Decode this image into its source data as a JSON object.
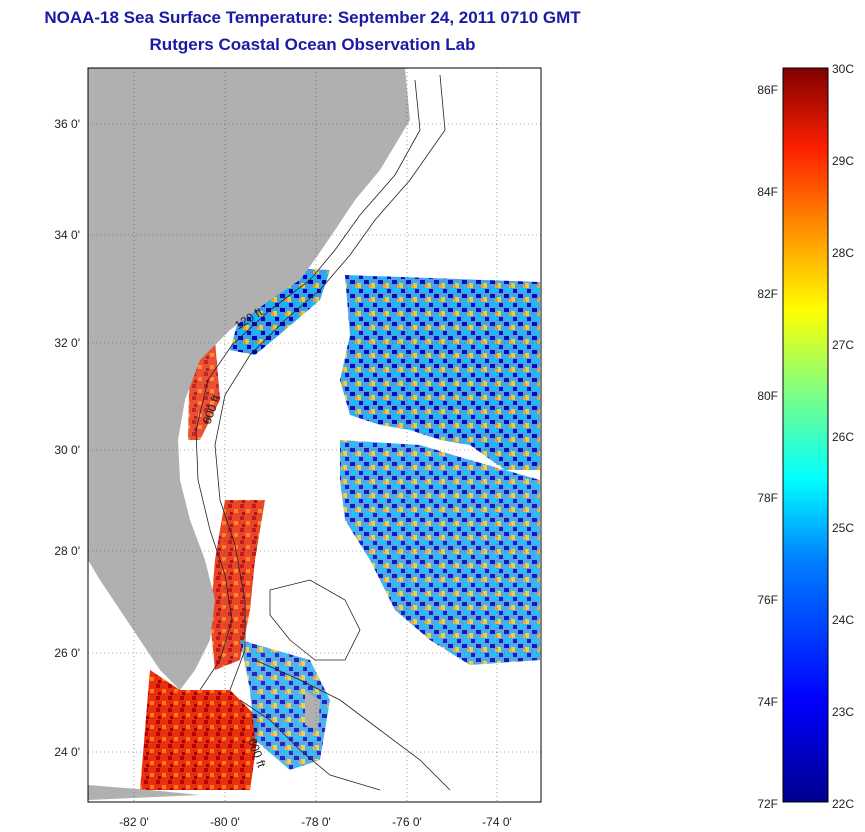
{
  "title": "NOAA-18 Sea Surface Temperature:  September 24, 2011 0710 GMT",
  "subtitle": "Rutgers Coastal Ocean Observation Lab",
  "map": {
    "lat_ticks": [
      "36 0'",
      "34 0'",
      "32 0'",
      "30 0'",
      "28 0'",
      "26 0'",
      "24 0'"
    ],
    "lon_ticks": [
      "-82 0'",
      "-80 0'",
      "-78 0'",
      "-76 0'",
      "-74 0'"
    ],
    "contour_labels": [
      "120 ft",
      "600 ft",
      "600 ft"
    ]
  },
  "colorbar": {
    "fahrenheit_labels": [
      "86F",
      "84F",
      "82F",
      "80F",
      "78F",
      "76F",
      "74F",
      "72F"
    ],
    "celsius_labels": [
      "30C",
      "29C",
      "28C",
      "27C",
      "26C",
      "25C",
      "24C",
      "23C",
      "22C"
    ],
    "colors": {
      "land": "#b0b0b0",
      "frame": "#000000",
      "title": "#1a1aa6"
    }
  }
}
